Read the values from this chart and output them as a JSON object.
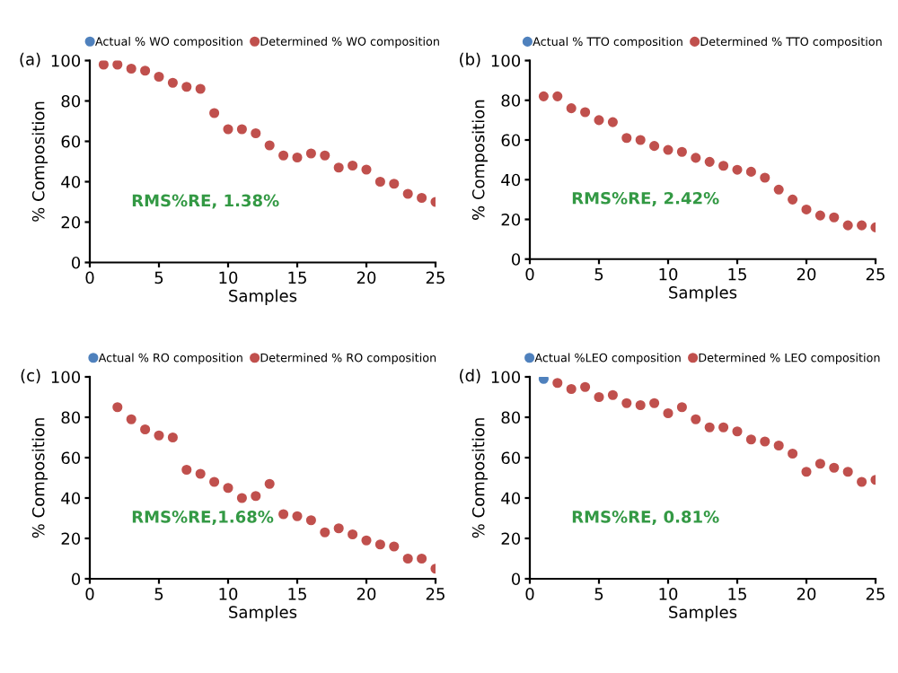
{
  "chart_data": [
    {
      "type": "scatter",
      "title": "(a)",
      "xlabel": "Samples",
      "ylabel": "% Composition",
      "annotations": [
        "RMS%RE, 1.38%"
      ],
      "x": [
        1,
        2,
        3,
        4,
        5,
        6,
        7,
        8,
        9,
        10,
        11,
        12,
        13,
        14,
        15,
        16,
        17,
        18,
        19,
        20,
        21,
        22,
        23,
        24,
        25
      ],
      "series": [
        {
          "name": "Actual % WO composition",
          "color": "#4f81bd",
          "values": [
            null,
            null,
            null,
            null,
            null,
            null,
            null,
            null,
            null,
            null,
            null,
            null,
            null,
            null,
            null,
            null,
            null,
            null,
            null,
            null,
            null,
            null,
            null,
            null,
            null
          ]
        },
        {
          "name": "Determined % WO composition",
          "color": "#c0504d",
          "values": [
            98,
            98,
            96,
            95,
            92,
            89,
            87,
            86,
            74,
            66,
            66,
            64,
            58,
            53,
            52,
            54,
            53,
            47,
            48,
            46,
            40,
            39,
            34,
            32,
            30
          ]
        }
      ],
      "xlim": [
        0,
        25
      ],
      "xticks": [
        0,
        5,
        10,
        15,
        20,
        25
      ],
      "ylim": [
        0,
        100
      ],
      "yticks": [
        0,
        20,
        40,
        60,
        80,
        100
      ],
      "grid": false,
      "legend": "top",
      "marker": "circle"
    },
    {
      "type": "scatter",
      "title": "(b)",
      "xlabel": "Samples",
      "ylabel": "% Composition",
      "annotations": [
        "RMS%RE, 2.42%"
      ],
      "x": [
        1,
        2,
        3,
        4,
        5,
        6,
        7,
        8,
        9,
        10,
        11,
        12,
        13,
        14,
        15,
        16,
        17,
        18,
        19,
        20,
        21,
        22,
        23,
        24,
        25
      ],
      "series": [
        {
          "name": "Actual % TTO composition",
          "color": "#4f81bd",
          "values": [
            null,
            null,
            null,
            null,
            null,
            null,
            null,
            null,
            null,
            null,
            null,
            null,
            null,
            null,
            null,
            null,
            null,
            null,
            null,
            null,
            null,
            null,
            null,
            null,
            null
          ]
        },
        {
          "name": "Determined % TTO composition",
          "color": "#c0504d",
          "values": [
            82,
            82,
            76,
            74,
            70,
            69,
            61,
            60,
            57,
            55,
            54,
            51,
            49,
            47,
            45,
            44,
            41,
            35,
            30,
            25,
            22,
            21,
            17,
            17,
            16
          ]
        }
      ],
      "xlim": [
        0,
        25
      ],
      "xticks": [
        0,
        5,
        10,
        15,
        20,
        25
      ],
      "ylim": [
        0,
        100
      ],
      "yticks": [
        0,
        20,
        40,
        60,
        80,
        100
      ],
      "grid": false,
      "legend": "top",
      "marker": "circle"
    },
    {
      "type": "scatter",
      "title": "(c)",
      "xlabel": "Samples",
      "ylabel": "% Composition",
      "annotations": [
        "RMS%RE,1.68%"
      ],
      "x": [
        2,
        3,
        4,
        5,
        6,
        7,
        8,
        9,
        10,
        11,
        12,
        13,
        14,
        15,
        16,
        17,
        18,
        19,
        20,
        21,
        22,
        23,
        24,
        25
      ],
      "series": [
        {
          "name": "Actual % RO composition",
          "color": "#4f81bd",
          "values": [
            null,
            null,
            null,
            null,
            null,
            null,
            null,
            null,
            null,
            null,
            null,
            null,
            null,
            null,
            null,
            null,
            null,
            null,
            null,
            null,
            null,
            null,
            null,
            null
          ]
        },
        {
          "name": "Determined % RO composition",
          "color": "#c0504d",
          "values": [
            85,
            79,
            74,
            71,
            70,
            54,
            52,
            48,
            45,
            40,
            41,
            47,
            32,
            31,
            29,
            23,
            25,
            22,
            19,
            17,
            16,
            10,
            10,
            5
          ]
        }
      ],
      "xlim": [
        0,
        25
      ],
      "xticks": [
        0,
        5,
        10,
        15,
        20,
        25
      ],
      "ylim": [
        0,
        100
      ],
      "yticks": [
        0,
        20,
        40,
        60,
        80,
        100
      ],
      "grid": false,
      "legend": "top",
      "marker": "circle"
    },
    {
      "type": "scatter",
      "title": "(d)",
      "xlabel": "Samples",
      "ylabel": "% Composition",
      "annotations": [
        "RMS%RE, 0.81%"
      ],
      "x": [
        1,
        2,
        3,
        4,
        5,
        6,
        7,
        8,
        9,
        10,
        11,
        12,
        13,
        14,
        15,
        16,
        17,
        18,
        19,
        20,
        21,
        22,
        23,
        24,
        25
      ],
      "series": [
        {
          "name": "Actual %LEO composition",
          "color": "#4f81bd",
          "values": [
            99,
            null,
            null,
            null,
            null,
            null,
            null,
            null,
            null,
            null,
            null,
            null,
            null,
            null,
            null,
            null,
            null,
            null,
            null,
            null,
            null,
            null,
            null,
            null,
            null
          ]
        },
        {
          "name": "Determined % LEO composition",
          "color": "#c0504d",
          "values": [
            null,
            97,
            94,
            95,
            90,
            91,
            87,
            86,
            87,
            82,
            85,
            79,
            75,
            75,
            73,
            69,
            68,
            66,
            62,
            53,
            57,
            55,
            53,
            48,
            49
          ]
        }
      ],
      "xlim": [
        0,
        25
      ],
      "xticks": [
        0,
        5,
        10,
        15,
        20,
        25
      ],
      "ylim": [
        0,
        100
      ],
      "yticks": [
        0,
        20,
        40,
        60,
        80,
        100
      ],
      "grid": false,
      "legend": "top",
      "marker": "circle"
    }
  ]
}
